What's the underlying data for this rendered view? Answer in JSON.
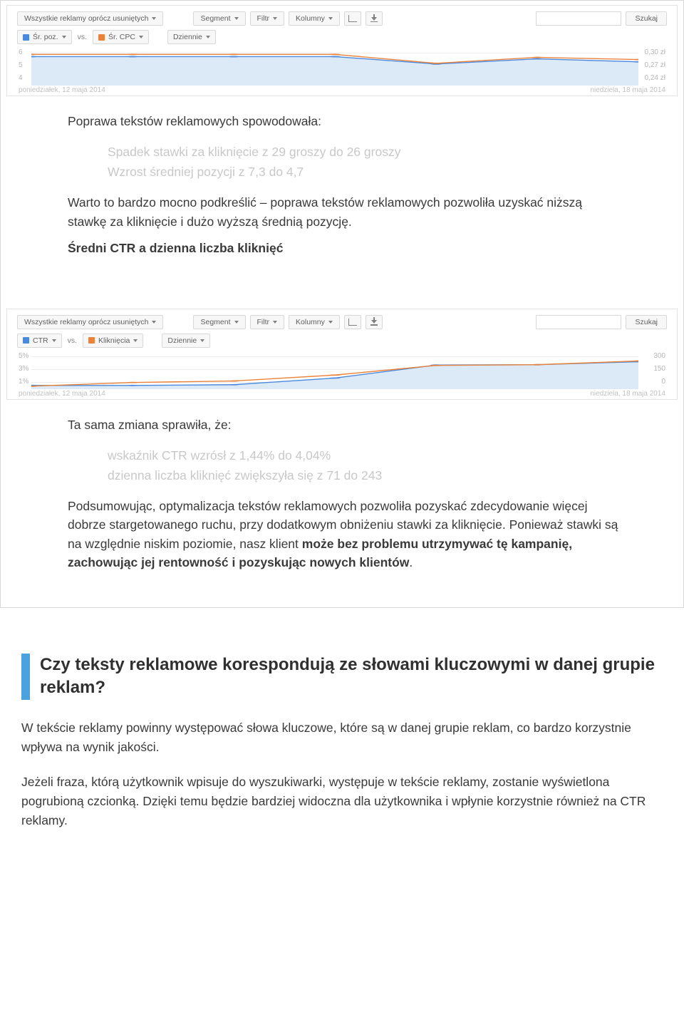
{
  "chart1": {
    "toolbar": {
      "all_ads": "Wszystkie reklamy oprócz usuniętych",
      "segment": "Segment",
      "filter": "Filtr",
      "columns": "Kolumny",
      "search_btn": "Szukaj"
    },
    "row2": {
      "metric_a": "Śr. poz.",
      "vs": "vs.",
      "metric_b": "Śr. CPC",
      "daily": "Dziennie"
    },
    "y_left": [
      "6",
      "5",
      "4"
    ],
    "y_right": [
      "0,30 zł",
      "0,27 zł",
      "0,24 zł"
    ],
    "date_left": "poniedziałek, 12 maja 2014",
    "date_right": "niedziela, 18 maja 2014",
    "series": {
      "blue_color": "#4a89dc",
      "orange_color": "#e9833b",
      "area_color": "#dce9f6",
      "blue_y": [
        0.22,
        0.22,
        0.22,
        0.22,
        0.42,
        0.28,
        0.36
      ],
      "orange_y": [
        0.16,
        0.16,
        0.16,
        0.16,
        0.4,
        0.24,
        0.3
      ]
    }
  },
  "text1": {
    "intro": "Poprawa tekstów reklamowych spowodowała:",
    "bullets": [
      "Spadek stawki za kliknięcie z 29 groszy do 26 groszy",
      "Wzrost średniej pozycji z 7,3 do 4,7"
    ],
    "para": "Warto to bardzo mocno podkreślić – poprawa tekstów reklamowych pozwoliła uzyskać niższą stawkę za kliknięcie i dużo wyższą średnią pozycję.",
    "subhead": "Średni CTR a dzienna liczba kliknięć"
  },
  "chart2": {
    "toolbar": {
      "all_ads": "Wszystkie reklamy oprócz usuniętych",
      "segment": "Segment",
      "filter": "Filtr",
      "columns": "Kolumny",
      "search_btn": "Szukaj"
    },
    "row2": {
      "metric_a": "CTR",
      "vs": "vs.",
      "metric_b": "Kliknięcia",
      "daily": "Dziennie"
    },
    "y_left": [
      "5%",
      "3%",
      "1%"
    ],
    "y_right": [
      "300",
      "150",
      "0"
    ],
    "date_left": "poniedziałek, 12 maja 2014",
    "date_right": "niedziela, 18 maja 2014",
    "series": {
      "blue_color": "#4a89dc",
      "orange_color": "#e9833b",
      "area_color": "#dce9f6",
      "blue_y": [
        0.9,
        0.9,
        0.88,
        0.7,
        0.35,
        0.34,
        0.26
      ],
      "orange_y": [
        0.92,
        0.82,
        0.78,
        0.62,
        0.36,
        0.34,
        0.24
      ]
    }
  },
  "text2": {
    "intro": "Ta sama zmiana sprawiła, że:",
    "bullets": [
      "wskaźnik CTR wzrósł z 1,44% do 4,04%",
      "dzienna liczba kliknięć zwiększyła się z 71 do 243"
    ],
    "para_a": "Podsumowując, optymalizacja tekstów reklamowych pozwoliła pozyskać zdecydowanie więcej dobrze stargetowanego ruchu, przy dodatkowym obniżeniu stawki za kliknięcie. Ponieważ stawki są na względnie niskim poziomie, nasz klient ",
    "para_b_bold": "może bez problemu utrzymywać tę kampanię, zachowując jej rentowność i pozyskując nowych klientów",
    "para_c": "."
  },
  "section2": {
    "title": "Czy teksty reklamowe korespondują ze słowami kluczowymi w danej grupie reklam?",
    "p1": "W tekście reklamy powinny występować słowa kluczowe, które są w danej grupie reklam, co bardzo korzystnie wpływa na wynik jakości.",
    "p2": "Jeżeli fraza, którą użytkownik wpisuje do wyszukiwarki, występuje w tekście reklamy, zostanie wyświetlona pogrubioną czcionką. Dzięki temu będzie bardziej widoczna dla użytkownika i wpłynie korzystnie również na CTR reklamy."
  }
}
